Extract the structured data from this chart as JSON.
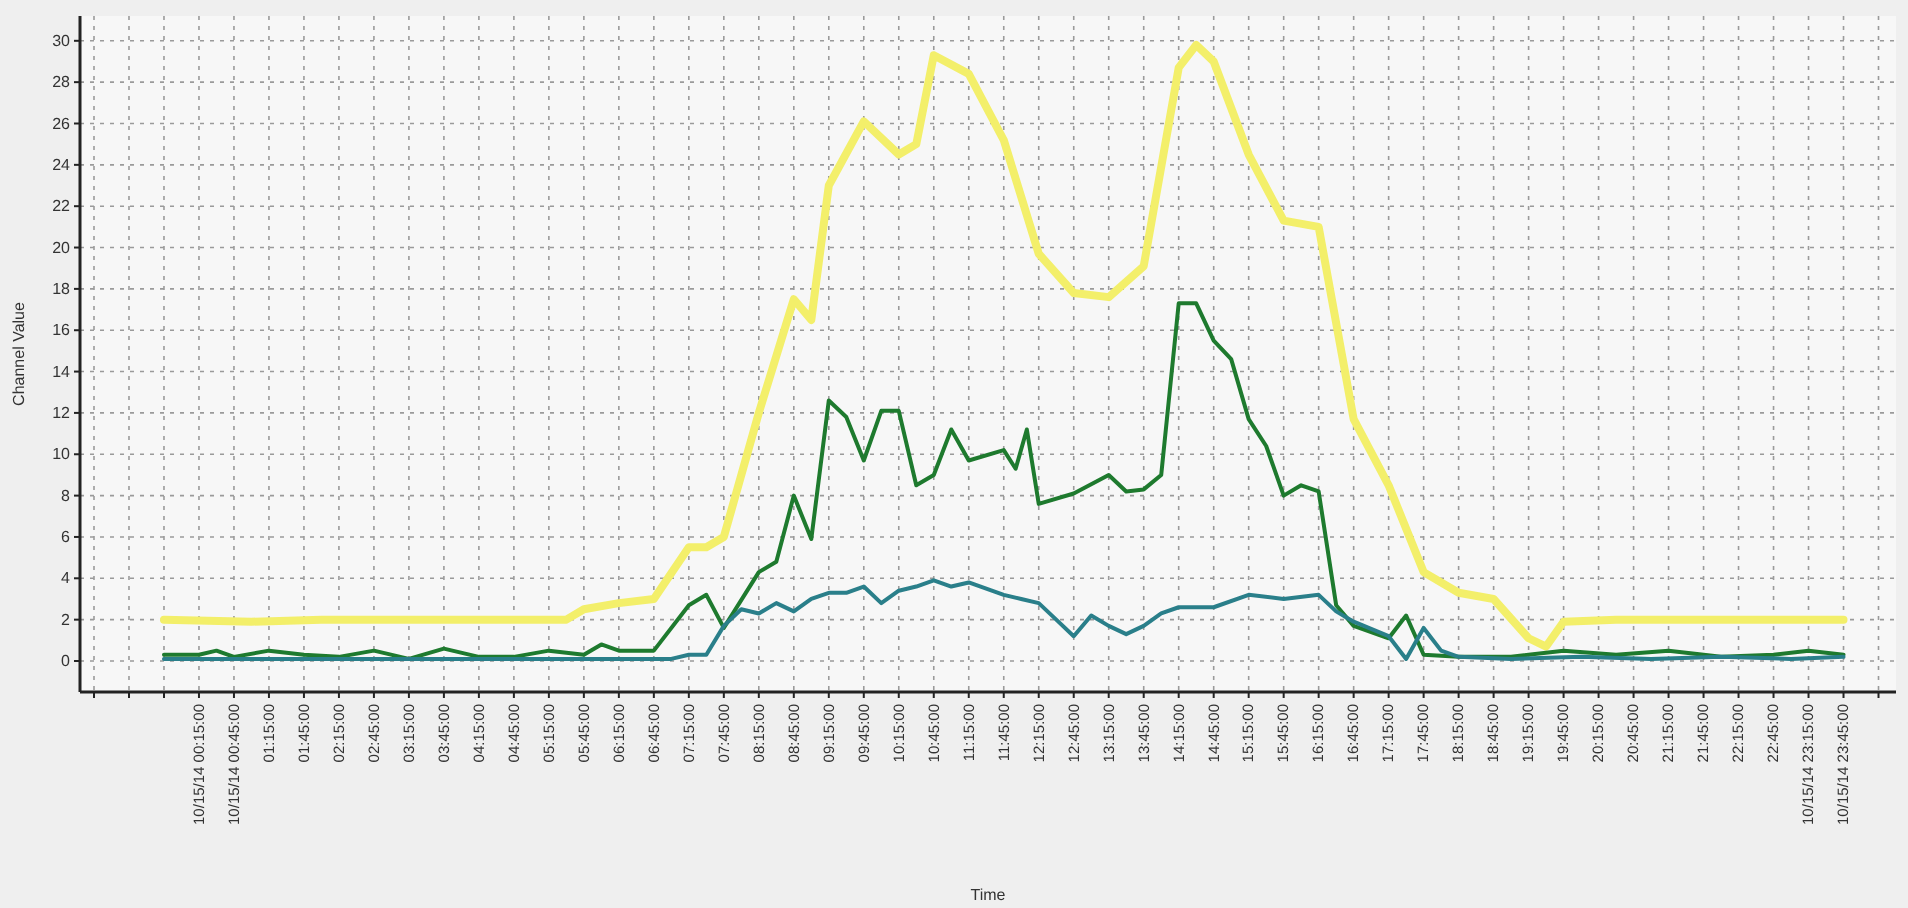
{
  "chart_data": {
    "type": "line",
    "xlabel": "Time",
    "ylabel": "Channel Value",
    "xlim": [
      -1.45,
      24.5
    ],
    "ylim": [
      -1.5,
      31.2
    ],
    "yticks": [
      0,
      2,
      4,
      6,
      8,
      10,
      12,
      14,
      16,
      18,
      20,
      22,
      24,
      26,
      28,
      30
    ],
    "xticks": [
      {
        "value": -1.25,
        "label": null
      },
      {
        "value": -0.75,
        "label": null
      },
      {
        "value": -0.25,
        "label": null
      },
      {
        "value": 0.25,
        "label": "10/15/14 00:15:00"
      },
      {
        "value": 0.75,
        "label": "10/15/14 00:45:00"
      },
      {
        "value": 1.25,
        "label": "01:15:00"
      },
      {
        "value": 1.75,
        "label": "01:45:00"
      },
      {
        "value": 2.25,
        "label": "02:15:00"
      },
      {
        "value": 2.75,
        "label": "02:45:00"
      },
      {
        "value": 3.25,
        "label": "03:15:00"
      },
      {
        "value": 3.75,
        "label": "03:45:00"
      },
      {
        "value": 4.25,
        "label": "04:15:00"
      },
      {
        "value": 4.75,
        "label": "04:45:00"
      },
      {
        "value": 5.25,
        "label": "05:15:00"
      },
      {
        "value": 5.75,
        "label": "05:45:00"
      },
      {
        "value": 6.25,
        "label": "06:15:00"
      },
      {
        "value": 6.75,
        "label": "06:45:00"
      },
      {
        "value": 7.25,
        "label": "07:15:00"
      },
      {
        "value": 7.75,
        "label": "07:45:00"
      },
      {
        "value": 8.25,
        "label": "08:15:00"
      },
      {
        "value": 8.75,
        "label": "08:45:00"
      },
      {
        "value": 9.25,
        "label": "09:15:00"
      },
      {
        "value": 9.75,
        "label": "09:45:00"
      },
      {
        "value": 10.25,
        "label": "10:15:00"
      },
      {
        "value": 10.75,
        "label": "10:45:00"
      },
      {
        "value": 11.25,
        "label": "11:15:00"
      },
      {
        "value": 11.75,
        "label": "11:45:00"
      },
      {
        "value": 12.25,
        "label": "12:15:00"
      },
      {
        "value": 12.75,
        "label": "12:45:00"
      },
      {
        "value": 13.25,
        "label": "13:15:00"
      },
      {
        "value": 13.75,
        "label": "13:45:00"
      },
      {
        "value": 14.25,
        "label": "14:15:00"
      },
      {
        "value": 14.75,
        "label": "14:45:00"
      },
      {
        "value": 15.25,
        "label": "15:15:00"
      },
      {
        "value": 15.75,
        "label": "15:45:00"
      },
      {
        "value": 16.25,
        "label": "16:15:00"
      },
      {
        "value": 16.75,
        "label": "16:45:00"
      },
      {
        "value": 17.25,
        "label": "17:15:00"
      },
      {
        "value": 17.75,
        "label": "17:45:00"
      },
      {
        "value": 18.25,
        "label": "18:15:00"
      },
      {
        "value": 18.75,
        "label": "18:45:00"
      },
      {
        "value": 19.25,
        "label": "19:15:00"
      },
      {
        "value": 19.75,
        "label": "19:45:00"
      },
      {
        "value": 20.25,
        "label": "20:15:00"
      },
      {
        "value": 20.75,
        "label": "20:45:00"
      },
      {
        "value": 21.25,
        "label": "21:15:00"
      },
      {
        "value": 21.75,
        "label": "21:45:00"
      },
      {
        "value": 22.25,
        "label": "22:15:00"
      },
      {
        "value": 22.75,
        "label": "22:45:00"
      },
      {
        "value": 23.25,
        "label": "10/15/14 23:15:00"
      },
      {
        "value": 23.75,
        "label": "10/15/14 23:45:00"
      },
      {
        "value": 24.25,
        "label": null
      }
    ],
    "grid": true,
    "marker": "none",
    "line_style": "solid",
    "series": [
      {
        "color": "#f3ef6a",
        "x": [
          -0.25,
          1,
          2,
          3.5,
          5.5,
          5.75,
          6.25,
          6.75,
          7.25,
          7.5,
          7.75,
          8.25,
          8.75,
          9,
          9.25,
          9.75,
          10.25,
          10.5,
          10.75,
          11.25,
          11.75,
          12.25,
          12.75,
          13.25,
          13.75,
          14.25,
          14.5,
          14.75,
          15.25,
          15.75,
          16.25,
          16.75,
          17.25,
          17.75,
          18.25,
          18.75,
          19.25,
          19.5,
          19.75,
          20.5,
          21.5,
          22.5,
          23.75
        ],
        "values": [
          2,
          1.9,
          2,
          2,
          2,
          2.5,
          2.8,
          3,
          5.5,
          5.5,
          6,
          12,
          17.5,
          16.5,
          23,
          26.1,
          24.5,
          25,
          29.3,
          28.4,
          25.2,
          19.7,
          17.8,
          17.6,
          19.1,
          28.7,
          29.8,
          29,
          24.5,
          21.3,
          21,
          11.7,
          8.5,
          4.3,
          3.3,
          3,
          1.1,
          0.7,
          1.9,
          2,
          2,
          2,
          2
        ]
      },
      {
        "color": "#1e7a2e",
        "x": [
          -0.25,
          0.25,
          0.5,
          0.75,
          1.25,
          1.75,
          2.25,
          2.75,
          3.25,
          3.75,
          4.25,
          4.75,
          5.25,
          5.75,
          6,
          6.25,
          6.75,
          7.25,
          7.5,
          7.75,
          8.25,
          8.5,
          8.75,
          9,
          9.25,
          9.5,
          9.75,
          10,
          10.25,
          10.5,
          10.75,
          11,
          11.25,
          11.75,
          11.92,
          12.08,
          12.25,
          12.75,
          13.25,
          13.5,
          13.75,
          14,
          14.25,
          14.5,
          14.75,
          15,
          15.25,
          15.5,
          15.75,
          16,
          16.25,
          16.5,
          16.75,
          17.25,
          17.5,
          17.75,
          18.25,
          19,
          19.75,
          20.5,
          21.25,
          22,
          22.75,
          23.25,
          23.75
        ],
        "values": [
          0.3,
          0.3,
          0.5,
          0.2,
          0.5,
          0.3,
          0.2,
          0.5,
          0.1,
          0.6,
          0.2,
          0.2,
          0.5,
          0.3,
          0.8,
          0.5,
          0.5,
          2.7,
          3.2,
          1.6,
          4.3,
          4.8,
          8,
          5.9,
          12.6,
          11.8,
          9.7,
          12.1,
          12.1,
          8.5,
          9,
          11.2,
          9.7,
          10.2,
          9.3,
          11.2,
          7.6,
          8.1,
          9,
          8.2,
          8.3,
          9,
          17.3,
          17.3,
          15.5,
          14.6,
          11.7,
          10.4,
          8,
          8.5,
          8.2,
          2.7,
          1.7,
          1.1,
          2.2,
          0.3,
          0.2,
          0.2,
          0.5,
          0.3,
          0.5,
          0.2,
          0.3,
          0.5,
          0.3
        ]
      },
      {
        "color": "#2a7f8a",
        "x": [
          -0.25,
          2,
          4,
          6,
          7,
          7.25,
          7.5,
          7.75,
          8,
          8.25,
          8.5,
          8.75,
          9,
          9.25,
          9.5,
          9.75,
          10,
          10.25,
          10.5,
          10.75,
          11,
          11.25,
          11.75,
          12,
          12.25,
          12.5,
          12.75,
          13,
          13.25,
          13.5,
          13.75,
          14,
          14.25,
          14.75,
          15.25,
          15.75,
          16.25,
          16.5,
          16.75,
          17.25,
          17.5,
          17.75,
          18,
          18.25,
          19,
          20,
          21,
          22,
          23,
          23.75
        ],
        "values": [
          0.1,
          0.1,
          0.1,
          0.1,
          0.1,
          0.3,
          0.3,
          1.7,
          2.5,
          2.3,
          2.8,
          2.4,
          3,
          3.3,
          3.3,
          3.6,
          2.8,
          3.4,
          3.6,
          3.9,
          3.6,
          3.8,
          3.2,
          3,
          2.8,
          2,
          1.2,
          2.2,
          1.7,
          1.3,
          1.7,
          2.3,
          2.6,
          2.6,
          3.2,
          3,
          3.2,
          2.4,
          1.9,
          1.2,
          0.1,
          1.6,
          0.5,
          0.2,
          0.1,
          0.2,
          0.1,
          0.2,
          0.1,
          0.2
        ]
      }
    ]
  }
}
